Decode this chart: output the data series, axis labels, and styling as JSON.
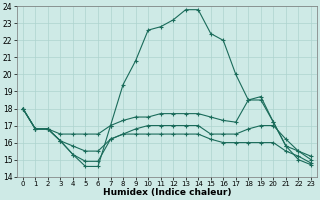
{
  "xlabel": "Humidex (Indice chaleur)",
  "xlim": [
    -0.5,
    23.5
  ],
  "ylim": [
    14,
    24
  ],
  "xticks": [
    0,
    1,
    2,
    3,
    4,
    5,
    6,
    7,
    8,
    9,
    10,
    11,
    12,
    13,
    14,
    15,
    16,
    17,
    18,
    19,
    20,
    21,
    22,
    23
  ],
  "yticks": [
    14,
    15,
    16,
    17,
    18,
    19,
    20,
    21,
    22,
    23,
    24
  ],
  "bg_color": "#ceeae6",
  "grid_color": "#aed4cf",
  "line_color": "#1a6b5a",
  "lines": [
    {
      "x": [
        0,
        1,
        2,
        3,
        4,
        5,
        6,
        7,
        8,
        9,
        10,
        11,
        12,
        13,
        14,
        15,
        16,
        17,
        18,
        19,
        20,
        21,
        22,
        23
      ],
      "y": [
        18.0,
        16.8,
        16.8,
        16.1,
        15.3,
        14.6,
        14.6,
        17.0,
        19.4,
        20.8,
        22.6,
        22.8,
        23.2,
        23.8,
        23.8,
        22.4,
        22.0,
        20.0,
        18.5,
        18.7,
        17.2,
        15.8,
        15.0,
        14.7
      ]
    },
    {
      "x": [
        0,
        1,
        2,
        3,
        4,
        5,
        6,
        7,
        8,
        9,
        10,
        11,
        12,
        13,
        14,
        15,
        16,
        17,
        18,
        19,
        20,
        21,
        22,
        23
      ],
      "y": [
        18.0,
        16.8,
        16.8,
        16.5,
        16.5,
        16.5,
        16.5,
        17.0,
        17.3,
        17.5,
        17.5,
        17.7,
        17.7,
        17.7,
        17.7,
        17.5,
        17.3,
        17.2,
        18.5,
        18.5,
        17.2,
        15.8,
        15.5,
        15.0
      ]
    },
    {
      "x": [
        0,
        1,
        2,
        3,
        4,
        5,
        6,
        7,
        8,
        9,
        10,
        11,
        12,
        13,
        14,
        15,
        16,
        17,
        18,
        19,
        20,
        21,
        22,
        23
      ],
      "y": [
        18.0,
        16.8,
        16.8,
        16.1,
        15.8,
        15.5,
        15.5,
        16.2,
        16.5,
        16.8,
        17.0,
        17.0,
        17.0,
        17.0,
        17.0,
        16.5,
        16.5,
        16.5,
        16.8,
        17.0,
        17.0,
        16.2,
        15.5,
        15.2
      ]
    },
    {
      "x": [
        0,
        1,
        2,
        3,
        4,
        5,
        6,
        7,
        8,
        9,
        10,
        11,
        12,
        13,
        14,
        15,
        16,
        17,
        18,
        19,
        20,
        21,
        22,
        23
      ],
      "y": [
        18.0,
        16.8,
        16.8,
        16.1,
        15.3,
        14.9,
        14.9,
        16.2,
        16.5,
        16.5,
        16.5,
        16.5,
        16.5,
        16.5,
        16.5,
        16.2,
        16.0,
        16.0,
        16.0,
        16.0,
        16.0,
        15.5,
        15.2,
        14.8
      ]
    }
  ]
}
